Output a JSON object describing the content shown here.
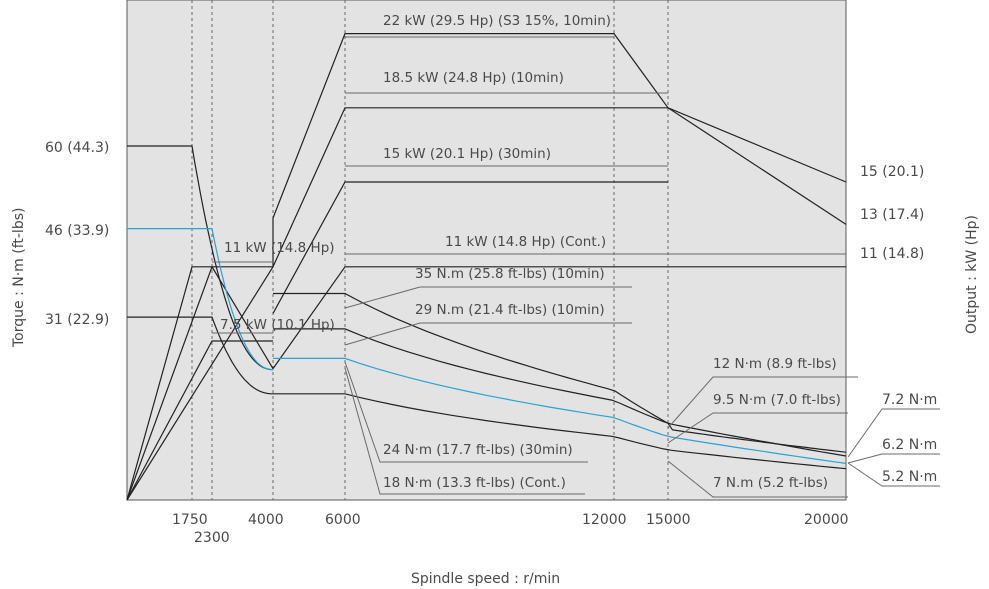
{
  "colors": {
    "plot_background": "#e3e3e3",
    "curve": "#222222",
    "highlight": "#2aa3cf",
    "text": "#4a4a4a",
    "gridline": "#6a6a6a"
  },
  "chart_data": {
    "type": "line",
    "xlabel": "Spindle speed : r/min",
    "ylabel_left": "Torque : N·m (ft-lbs)",
    "ylabel_right": "Output : kW (Hp)",
    "xlim": [
      0,
      20000
    ],
    "x_ticks": [
      {
        "value": 1750,
        "label": "1750"
      },
      {
        "value": 2300,
        "label": "2300"
      },
      {
        "value": 4000,
        "label": "4000"
      },
      {
        "value": 6000,
        "label": "6000"
      },
      {
        "value": 12000,
        "label": "12000"
      },
      {
        "value": 15000,
        "label": "15000"
      },
      {
        "value": 20000,
        "label": "20000"
      }
    ],
    "dashed_x": [
      1750,
      2300,
      4000,
      6000,
      12000,
      15000
    ],
    "torque_ticks": [
      {
        "value": 60,
        "label": "60 (44.3)"
      },
      {
        "value": 46,
        "label": "46 (33.9)"
      },
      {
        "value": 31,
        "label": "31 (22.9)"
      }
    ],
    "power_ticks": [
      {
        "value": 15,
        "label": "15 (20.1)"
      },
      {
        "value": 13,
        "label": "13 (17.4)"
      },
      {
        "value": 11,
        "label": "11 (14.8)"
      }
    ],
    "torque_end_labels": [
      {
        "value": 7.2,
        "label": "7.2 N·m"
      },
      {
        "value": 6.2,
        "label": "6.2 N·m"
      },
      {
        "value": 5.2,
        "label": "5.2 N·m"
      }
    ],
    "power_curves": [
      {
        "name": "22 kW (29.5 Hp) (S3 15%, 10min)",
        "points": [
          [
            0,
            0
          ],
          [
            4000,
            11
          ],
          [
            4000,
            13.3
          ],
          [
            6000,
            22
          ],
          [
            12000,
            22
          ],
          [
            15000,
            18.5
          ],
          [
            20000,
            15
          ]
        ]
      },
      {
        "name": "18.5 kW (24.8 Hp) (10min)",
        "points": [
          [
            4000,
            11
          ],
          [
            6000,
            18.5
          ],
          [
            15000,
            18.5
          ],
          [
            20000,
            13
          ]
        ]
      },
      {
        "name": "15 kW (20.1 Hp) (30min)",
        "points": [
          [
            4000,
            8.8
          ],
          [
            6000,
            15
          ],
          [
            15000,
            15
          ]
        ]
      },
      {
        "name": "11 kW (14.8 Hp)",
        "points": [
          [
            0,
            0
          ],
          [
            1750,
            11
          ],
          [
            4000,
            11
          ]
        ]
      },
      {
        "name": "7.5 kW (10.1 Hp)",
        "points": [
          [
            0,
            0
          ],
          [
            2300,
            7.5
          ],
          [
            4000,
            7.5
          ]
        ]
      },
      {
        "name": "11 kW (14.8 Hp) (Cont.)",
        "points": [
          [
            0,
            0
          ],
          [
            2300,
            11
          ],
          [
            4000,
            6.2
          ],
          [
            6000,
            11
          ],
          [
            20000,
            11
          ]
        ]
      }
    ],
    "torque_curves": [
      {
        "name": "35 N.m (25.8 ft-lbs) (10min)",
        "points": [
          [
            4000,
            35
          ],
          [
            6000,
            35
          ],
          [
            15000,
            12
          ],
          [
            20000,
            7.2
          ]
        ]
      },
      {
        "name": "29 N.m (21.4 ft-lbs) (10min)",
        "points": [
          [
            4000,
            29
          ],
          [
            6000,
            29
          ],
          [
            20000,
            6.2
          ]
        ]
      },
      {
        "name": "24 N·m (17.7 ft-lbs) (30min)",
        "points": [
          [
            4000,
            24
          ],
          [
            6000,
            24
          ],
          [
            20000,
            5.2
          ]
        ],
        "highlight": true
      },
      {
        "name": "18 N·m (13.3 ft-lbs) (Cont.)",
        "points": [
          [
            4000,
            18
          ],
          [
            6000,
            18
          ],
          [
            20000,
            5.2
          ]
        ]
      },
      {
        "name": "60 (44.3)",
        "points": [
          [
            0,
            60
          ],
          [
            1750,
            60
          ],
          [
            4000,
            22.1
          ]
        ]
      },
      {
        "name": "46 (33.9)",
        "points": [
          [
            0,
            46
          ],
          [
            2300,
            46
          ],
          [
            4000,
            22.1
          ]
        ],
        "highlight": true
      },
      {
        "name": "31 (22.9)",
        "points": [
          [
            0,
            31
          ],
          [
            2300,
            31
          ],
          [
            4000,
            18
          ]
        ]
      }
    ],
    "annotations": [
      "22 kW (29.5 Hp) (S3 15%, 10min)",
      "18.5 kW (24.8 Hp) (10min)",
      "15 kW (20.1 Hp) (30min)",
      "11 kW (14.8 Hp)",
      "7.5 kW (10.1 Hp)",
      "11 kW (14.8 Hp) (Cont.)",
      "35 N.m (25.8 ft-lbs) (10min)",
      "29 N.m (21.4 ft-lbs) (10min)",
      "12 N·m (8.9 ft-lbs)",
      "9.5 N·m (7.0 ft-lbs)",
      "24 N·m (17.7 ft-lbs) (30min)",
      "18 N·m (13.3 ft-lbs) (Cont.)",
      "7 N.m (5.2 ft-lbs)"
    ]
  }
}
